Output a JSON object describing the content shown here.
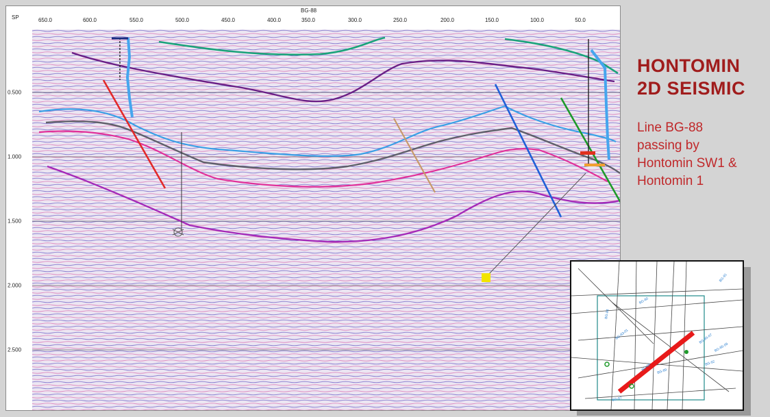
{
  "seismic_viewer": {
    "line_tag": "BG-88",
    "sp_label": "SP",
    "sp_ticks": [
      "650.0",
      "600.0",
      "550.0",
      "500.0",
      "450.0",
      "400.0",
      "350.0",
      "300.0",
      "250.0",
      "200.0",
      "150.0",
      "100.0",
      "50.0"
    ],
    "time_ticks": [
      "0.500",
      "1.000",
      "1.500",
      "2.000",
      "2.500"
    ],
    "horizon_colors": {
      "green": "#1aa37a",
      "purple": "#6a1f86",
      "blue": "#3aa0e6",
      "gray": "#5f5f6a",
      "magenta": "#e0309a",
      "violet": "#a429b8"
    },
    "fault_colors": {
      "red": "#e22a2a",
      "tan": "#c79a6a",
      "blue": "#2060d8",
      "green": "#1e9a2a"
    },
    "well_marker_icon": "well-symbol-icon",
    "location_marker_icon": "square-marker-icon",
    "marker_color": "#f2e400"
  },
  "title": {
    "line1": "HONTOMIN",
    "line2": "2D SEISMIC"
  },
  "subtitle": {
    "line1": "Line BG-88",
    "line2": "passing by",
    "line3": "Hontomin SW1 &",
    "line4": "Hontomin 1"
  },
  "inset_map": {
    "highlight_color": "#e81a1a",
    "box_color": "#1f8a8a",
    "labels": [
      "BG-88",
      "BG-84",
      "BG-80",
      "BG-92",
      "BG-85-09",
      "BG-85-07",
      "BG-83-01",
      "BG-89",
      "BG-87",
      "BG-91"
    ]
  }
}
